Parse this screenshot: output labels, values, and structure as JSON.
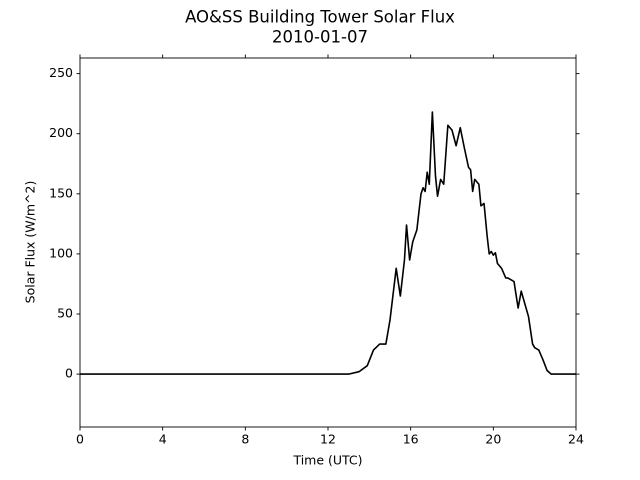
{
  "chart_data": {
    "type": "line",
    "title": "AO&SS Building Tower Solar Flux",
    "subtitle": "2010-01-07",
    "xlabel": "Time (UTC)",
    "ylabel": "Solar Flux (W/m^2)",
    "x": [
      0,
      13.0,
      13.5,
      13.9,
      14.2,
      14.5,
      14.8,
      15.0,
      15.3,
      15.5,
      15.7,
      15.8,
      15.95,
      16.1,
      16.3,
      16.5,
      16.6,
      16.7,
      16.8,
      16.9,
      17.05,
      17.2,
      17.3,
      17.45,
      17.6,
      17.8,
      18.0,
      18.2,
      18.4,
      18.6,
      18.8,
      18.9,
      19.0,
      19.1,
      19.3,
      19.4,
      19.55,
      19.7,
      19.8,
      19.9,
      20.0,
      20.1,
      20.2,
      20.4,
      20.6,
      20.7,
      20.9,
      21.0,
      21.2,
      21.35,
      21.5,
      21.7,
      21.9,
      22.0,
      22.2,
      22.4,
      22.6,
      22.8,
      24
    ],
    "series": [
      {
        "name": "Solar Flux",
        "color": "#000000",
        "values": [
          0,
          0,
          2,
          7,
          20,
          25,
          25,
          45,
          88,
          65,
          95,
          124,
          95,
          110,
          120,
          150,
          155,
          152,
          168,
          158,
          218,
          165,
          148,
          162,
          158,
          207,
          203,
          190,
          205,
          188,
          172,
          170,
          152,
          162,
          158,
          140,
          142,
          115,
          100,
          102,
          99,
          101,
          92,
          88,
          80,
          80,
          78,
          77,
          55,
          69,
          60,
          48,
          25,
          22,
          20,
          12,
          3,
          0,
          0
        ]
      }
    ],
    "xlim": [
      0,
      24
    ],
    "xticks": [
      0,
      4,
      8,
      12,
      16,
      20,
      24
    ],
    "ylim": [
      -44,
      263
    ],
    "yticks": [
      0,
      50,
      100,
      150,
      200,
      250
    ],
    "grid": false
  }
}
